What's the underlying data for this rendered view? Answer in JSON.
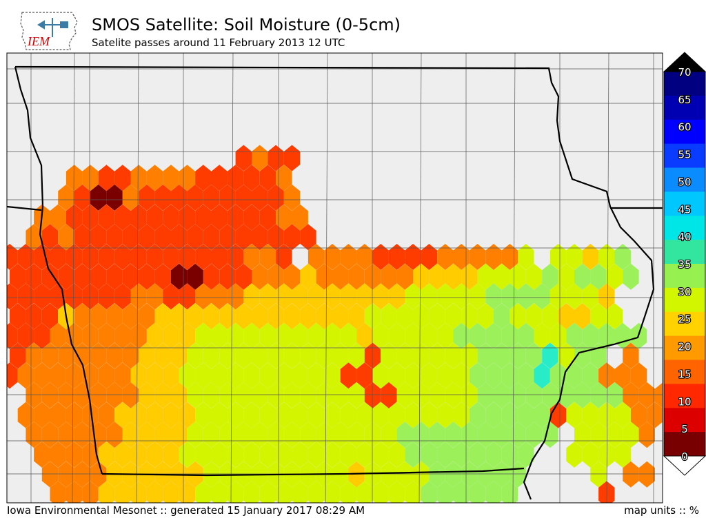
{
  "header": {
    "title": "SMOS Satellite: Soil Moisture (0-5cm)",
    "subtitle": "Satelite passes around 11 February 2013 12 UTC",
    "logo_text": "IEM"
  },
  "footer": {
    "left": "Iowa Environmental Mesonet :: generated 15 January 2017 08:29 AM",
    "right": "map units :: %"
  },
  "colorbar": {
    "labels": [
      "70",
      "65",
      "60",
      "55",
      "50",
      "45",
      "40",
      "35",
      "30",
      "25",
      "20",
      "15",
      "10",
      "5",
      "0"
    ],
    "colors": [
      "#000080",
      "#0000b2",
      "#0000ff",
      "#0a3cff",
      "#0a8cff",
      "#00c8ff",
      "#00e6e6",
      "#32e6a0",
      "#96f050",
      "#d2f500",
      "#ffd200",
      "#ff9a00",
      "#ff6400",
      "#ff2800",
      "#dc0000",
      "#780000"
    ]
  },
  "colors": {
    "background": "#eeeeee",
    "county_lines": "#555555",
    "state_lines": "#000000"
  },
  "map_data": {
    "hex_rows": [
      {
        "r": 0,
        "v": "________________________________________"
      },
      {
        "r": 1,
        "v": "________________________________________"
      },
      {
        "r": 2,
        "v": "________________________________________"
      },
      {
        "r": 3,
        "v": "________________________________________"
      },
      {
        "r": 4,
        "v": "________________________________________"
      },
      {
        "r": 5,
        "v": "______________6566______________________"
      },
      {
        "r": 6,
        "v": "____55665555666665______________________"
      },
      {
        "r": 7,
        "v": "___567756666666665______________________"
      },
      {
        "r": 8,
        "v": "__55666666666666655_____________________"
      },
      {
        "r": 9,
        "v": "_565666666666666666______________________"
      },
      {
        "r": 10,
        "v": "666666666666666556_55556666555553_33432__"
      },
      {
        "r": 11,
        "v": "666666666677666555455555544443333232232__"
      },
      {
        "r": 12,
        "v": "66666666556655544444444443333322223334___"
      },
      {
        "r": 13,
        "v": "66645555544444444444443333333323334433__"
      },
      {
        "r": 14,
        "v": "6665555554443333333333433333222223322222_"
      },
      {
        "r": 15,
        "v": "6555555544433333333333633333322221322_5_"
      },
      {
        "r": 16,
        "v": "6555555544433333333336633333322221222555"
      },
      {
        "r": 17,
        "v": "_5555555444333333333336633333222222222555"
      },
      {
        "r": 18,
        "v": "_5555554444433333333333333333222226333355"
      },
      {
        "r": 19,
        "v": "_555555444433333333333332222222222_33335_"
      },
      {
        "r": 20,
        "v": "__5555444443333333333333322222222__3333_"
      },
      {
        "r": 21,
        "v": "__555544444433333333343333222222____3_55_"
      },
      {
        "r": 22,
        "v": "___55544444433333333333333222222_____6___"
      }
    ],
    "note": "Hex grid of soil moisture values; digit index maps into colorbar bins from dry (7=0-5%) to wet."
  }
}
